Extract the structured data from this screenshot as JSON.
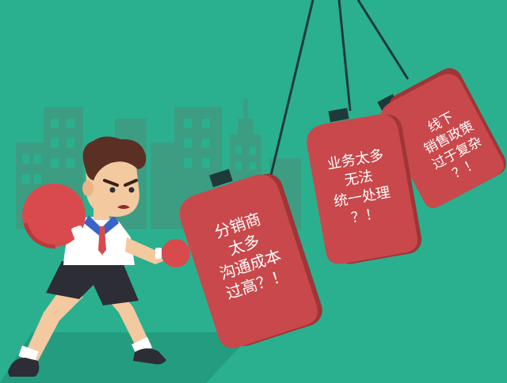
{
  "colors": {
    "background": "#2ab08f",
    "city": "#3d9d82",
    "bag_red": "#c8484b",
    "bag_dark": "#9f3537",
    "rope": "#1f3a3a",
    "glove": "#d94a4d",
    "shorts": "#2d2d35",
    "skin": "#f3c9a0"
  },
  "bags": [
    {
      "lines": [
        "分销商",
        "太多",
        "沟通成本",
        "过高？！"
      ]
    },
    {
      "lines": [
        "业务太多",
        "无法",
        "统一处理",
        "？！"
      ]
    },
    {
      "lines": [
        "线下",
        "销售政策",
        "过于复杂",
        "？！"
      ]
    }
  ]
}
